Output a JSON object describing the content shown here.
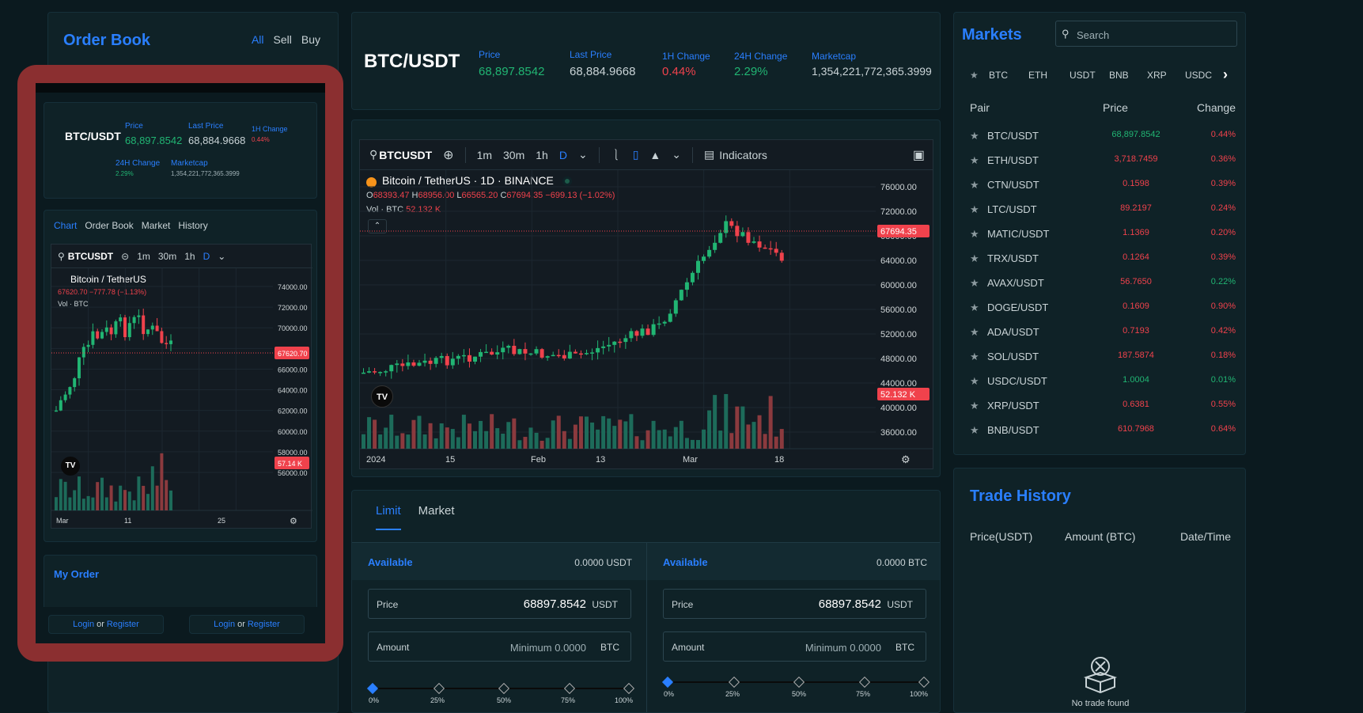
{
  "order_book": {
    "title": "Order Book",
    "filters": [
      "All",
      "Sell",
      "Buy"
    ]
  },
  "ticker": {
    "pair": "BTC/USDT",
    "price_label": "Price",
    "price": "68,897.8542",
    "last_label": "Last Price",
    "last": "68,884.9668",
    "h1_label": "1H Change",
    "h1": "0.44%",
    "h24_label": "24H Change",
    "h24": "2.29%",
    "mcap_label": "Marketcap",
    "mcap": "1,354,221,772,365.3999"
  },
  "chart": {
    "symbol": "BTCUSDT",
    "intervals": [
      "1m",
      "30m",
      "1h",
      "D"
    ],
    "indicators": "Indicators",
    "title": "Bitcoin / TetherUS · 1D · BINANCE",
    "ohlc": {
      "o": "68393.47",
      "h": "68956.00",
      "l": "66565.20",
      "c": "67694.35",
      "chg": "−699.13 (−1.02%)"
    },
    "vol_label": "Vol · BTC",
    "vol": "52.132 K",
    "yticks": [
      "76000.00",
      "72000.00",
      "68000.00",
      "64000.00",
      "60000.00",
      "56000.00",
      "52000.00",
      "48000.00",
      "44000.00",
      "40000.00",
      "36000.00"
    ],
    "xticks": [
      "2024",
      "15",
      "Feb",
      "13",
      "Mar",
      "18"
    ],
    "price_tag": "67694.35",
    "vol_tag": "52.132 K",
    "logo": "TV"
  },
  "trade": {
    "tabs": [
      "Limit",
      "Market"
    ],
    "buy": {
      "avail_label": "Available",
      "avail": "0.0000 USDT",
      "price_label": "Price",
      "price": "68897.8542",
      "price_unit": "USDT",
      "amount_label": "Amount",
      "amount_ph": "Minimum 0.0000",
      "amount_unit": "BTC"
    },
    "sell": {
      "avail_label": "Available",
      "avail": "0.0000 BTC",
      "price_label": "Price",
      "price": "68897.8542",
      "price_unit": "USDT",
      "amount_label": "Amount",
      "amount_ph": "Minimum 0.0000",
      "amount_unit": "BTC"
    },
    "steps": [
      "0%",
      "25%",
      "50%",
      "75%",
      "100%"
    ]
  },
  "markets": {
    "title": "Markets",
    "search_ph": "Search",
    "tabs": [
      "BTC",
      "ETH",
      "USDT",
      "BNB",
      "XRP",
      "USDC"
    ],
    "headers": [
      "Pair",
      "Price",
      "Change"
    ],
    "rows": [
      {
        "pair": "BTC/USDT",
        "price": "68,897.8542",
        "change": "0.44%",
        "up": true,
        "chg_up": false
      },
      {
        "pair": "ETH/USDT",
        "price": "3,718.7459",
        "change": "0.36%",
        "up": false,
        "chg_up": false
      },
      {
        "pair": "CTN/USDT",
        "price": "0.1598",
        "change": "0.39%",
        "up": false,
        "chg_up": false
      },
      {
        "pair": "LTC/USDT",
        "price": "89.2197",
        "change": "0.24%",
        "up": false,
        "chg_up": false
      },
      {
        "pair": "MATIC/USDT",
        "price": "1.1369",
        "change": "0.20%",
        "up": false,
        "chg_up": false
      },
      {
        "pair": "TRX/USDT",
        "price": "0.1264",
        "change": "0.39%",
        "up": false,
        "chg_up": false
      },
      {
        "pair": "AVAX/USDT",
        "price": "56.7650",
        "change": "0.22%",
        "up": false,
        "chg_up": true
      },
      {
        "pair": "DOGE/USDT",
        "price": "0.1609",
        "change": "0.90%",
        "up": false,
        "chg_up": false
      },
      {
        "pair": "ADA/USDT",
        "price": "0.7193",
        "change": "0.42%",
        "up": false,
        "chg_up": false
      },
      {
        "pair": "SOL/USDT",
        "price": "187.5874",
        "change": "0.18%",
        "up": false,
        "chg_up": false
      },
      {
        "pair": "USDC/USDT",
        "price": "1.0004",
        "change": "0.01%",
        "up": true,
        "chg_up": true
      },
      {
        "pair": "XRP/USDT",
        "price": "0.6381",
        "change": "0.55%",
        "up": false,
        "chg_up": false
      },
      {
        "pair": "BNB/USDT",
        "price": "610.7968",
        "change": "0.64%",
        "up": false,
        "chg_up": false
      }
    ]
  },
  "trade_history": {
    "title": "Trade History",
    "headers": [
      "Price(USDT)",
      "Amount (BTC)",
      "Date/Time"
    ],
    "empty": "No trade found"
  },
  "mobile": {
    "ticker": {
      "pair": "BTC/USDT",
      "price_label": "Price",
      "price": "68,897.8542",
      "last_label": "Last Price",
      "last": "68,884.9668",
      "h1_label": "1H Change",
      "h1": "0.44%",
      "h24_label": "24H Change",
      "h24": "2.29%",
      "mcap_label": "Marketcap",
      "mcap": "1,354,221,772,365.3999"
    },
    "tabs": [
      "Chart",
      "Order Book",
      "Market",
      "History"
    ],
    "chart": {
      "symbol": "BTCUSDT",
      "intervals": [
        "1m",
        "30m",
        "1h",
        "D"
      ],
      "title": "Bitcoin / TetherUS",
      "ohlc": "67620.70 −777.78 (−1.13%)",
      "vol_label": "Vol · BTC",
      "yticks": [
        "74000.00",
        "72000.00",
        "70000.00",
        "68000.00",
        "66000.00",
        "64000.00",
        "62000.00",
        "60000.00",
        "58000.00",
        "56000.00"
      ],
      "xticks": [
        "Mar",
        "11",
        "25"
      ],
      "price_tag": "67620.70",
      "vol_tag": "57.14 K",
      "logo": "TV"
    },
    "my_order": "My Order",
    "login": "Login",
    "or": "or",
    "register": "Register"
  },
  "colors": {
    "accent": "#2a7fff",
    "up": "#21b573",
    "down": "#f0424c",
    "highlight_frame": "#8b2f30"
  }
}
